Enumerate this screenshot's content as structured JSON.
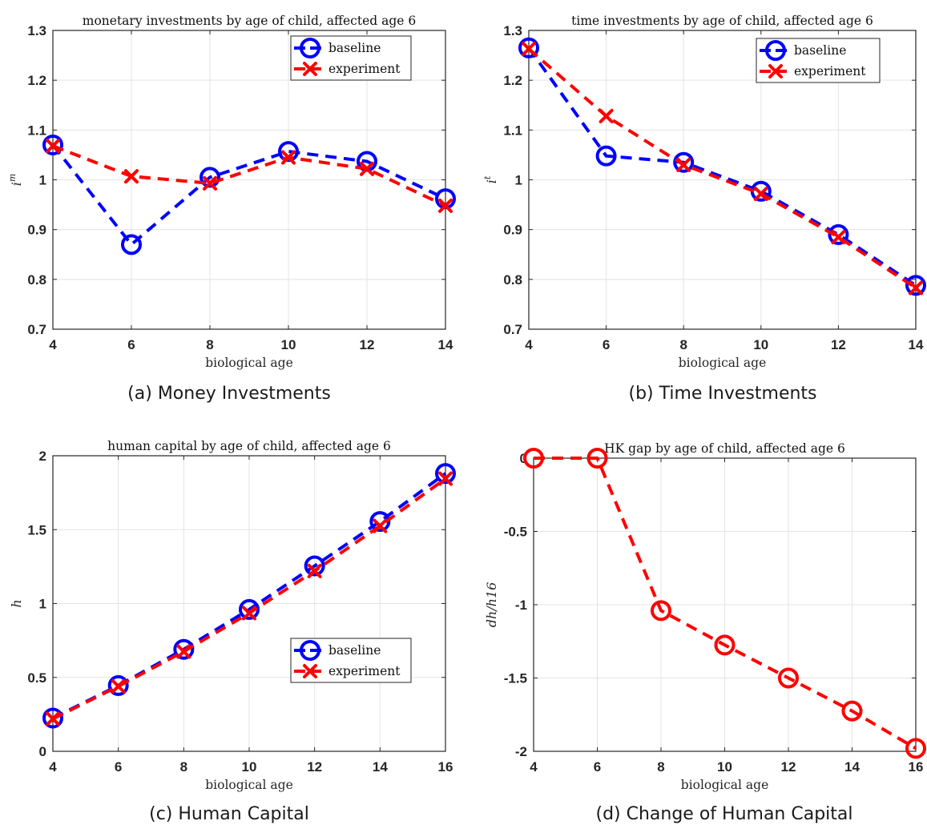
{
  "chart_data": [
    {
      "type": "line",
      "title": "monetary investments by age of child, affected age 6",
      "caption": "(a)  Money Investments",
      "xlabel": "biological age",
      "ylabel": "i",
      "ylabel_sup": "m",
      "xlim": [
        4,
        14
      ],
      "ylim": [
        0.7,
        1.3
      ],
      "xticks": [
        4,
        6,
        8,
        10,
        12,
        14
      ],
      "yticks": [
        0.7,
        0.8,
        0.9,
        1.0,
        1.1,
        1.2,
        1.3
      ],
      "yticklabels": [
        "0.7",
        "0.8",
        "0.9",
        "1",
        "1.1",
        "1.2",
        "1.3"
      ],
      "grid": true,
      "legend": "top-right",
      "x": [
        4,
        6,
        8,
        10,
        12,
        14
      ],
      "series": [
        {
          "name": "baseline",
          "color": "#0000ff",
          "marker": "circle",
          "values": [
            1.07,
            0.87,
            1.005,
            1.057,
            1.037,
            0.962
          ]
        },
        {
          "name": "experiment",
          "color": "#ff0000",
          "marker": "x",
          "values": [
            1.068,
            1.007,
            0.993,
            1.045,
            1.022,
            0.948
          ]
        }
      ]
    },
    {
      "type": "line",
      "title": "time investments by age of child, affected age 6",
      "caption": "(b)  Time Investments",
      "xlabel": "biological age",
      "ylabel": "i",
      "ylabel_sup": "t",
      "xlim": [
        4,
        14
      ],
      "ylim": [
        0.7,
        1.3
      ],
      "xticks": [
        4,
        6,
        8,
        10,
        12,
        14
      ],
      "yticks": [
        0.7,
        0.8,
        0.9,
        1.0,
        1.1,
        1.2,
        1.3
      ],
      "yticklabels": [
        "0.7",
        "0.8",
        "0.9",
        "1",
        "1.1",
        "1.2",
        "1.3"
      ],
      "grid": true,
      "legend": "top-right",
      "x": [
        4,
        6,
        8,
        10,
        12,
        14
      ],
      "series": [
        {
          "name": "baseline",
          "color": "#0000ff",
          "marker": "circle",
          "values": [
            1.265,
            1.048,
            1.035,
            0.977,
            0.89,
            0.788
          ]
        },
        {
          "name": "experiment",
          "color": "#ff0000",
          "marker": "x",
          "values": [
            1.263,
            1.128,
            1.03,
            0.972,
            0.885,
            0.783
          ]
        }
      ]
    },
    {
      "type": "line",
      "title": "human capital by age of child, affected age 6",
      "caption": "(c)  Human Capital",
      "xlabel": "biological age",
      "ylabel": "h",
      "ylabel_sup": "",
      "xlim": [
        4,
        16
      ],
      "ylim": [
        0,
        2
      ],
      "xticks": [
        4,
        6,
        8,
        10,
        12,
        14,
        16
      ],
      "yticks": [
        0,
        0.5,
        1,
        1.5,
        2
      ],
      "yticklabels": [
        "0",
        "0.5",
        "1",
        "1.5",
        "2"
      ],
      "grid": true,
      "legend": "bottom-right",
      "x": [
        4,
        6,
        8,
        10,
        12,
        14,
        16
      ],
      "series": [
        {
          "name": "baseline",
          "color": "#0000ff",
          "marker": "circle",
          "values": [
            0.225,
            0.445,
            0.69,
            0.96,
            1.255,
            1.555,
            1.88
          ]
        },
        {
          "name": "experiment",
          "color": "#ff0000",
          "marker": "x",
          "values": [
            0.22,
            0.44,
            0.675,
            0.935,
            1.22,
            1.525,
            1.845
          ]
        }
      ]
    },
    {
      "type": "line",
      "title": "HK gap by age of child, affected age 6",
      "caption": "(d)  Change of Human Capital",
      "xlabel": "biological age",
      "ylabel": "dh/h16",
      "ylabel_sup": "",
      "xlim": [
        4,
        16
      ],
      "ylim": [
        -2,
        0
      ],
      "xticks": [
        4,
        6,
        8,
        10,
        12,
        14,
        16
      ],
      "yticks": [
        -2,
        -1.5,
        -1,
        -0.5,
        0
      ],
      "yticklabels": [
        "-2",
        "-1.5",
        "-1",
        "-0.5",
        "0"
      ],
      "grid": true,
      "legend": "none",
      "reference_line": 0,
      "x": [
        4,
        6,
        8,
        10,
        12,
        14,
        16
      ],
      "series": [
        {
          "name": "",
          "color": "#ff0000",
          "marker": "circle",
          "values": [
            0,
            0,
            -1.04,
            -1.275,
            -1.5,
            -1.725,
            -1.98
          ]
        }
      ]
    }
  ]
}
